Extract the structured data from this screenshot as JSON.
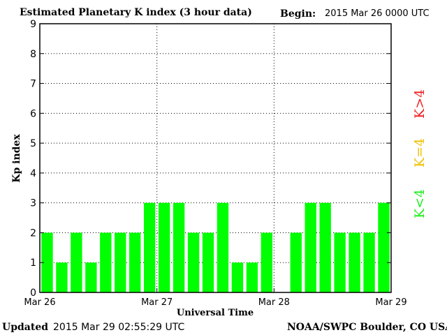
{
  "header": {
    "title": "Estimated Planetary K index (3 hour data)",
    "begin_label": "Begin:",
    "begin_value": "2015 Mar 26 0000 UTC"
  },
  "footer": {
    "updated_label": "Updated",
    "updated_value": "2015 Mar 29 02:55:29 UTC",
    "source": "NOAA/SWPC Boulder, CO USA"
  },
  "legend": {
    "items": [
      {
        "label": "K<4",
        "color": "#22ee22"
      },
      {
        "label": "K=4",
        "color": "#f0c000"
      },
      {
        "label": "K>4",
        "color": "#ee2222"
      }
    ]
  },
  "chart_data": {
    "type": "bar",
    "title": "Estimated Planetary K index (3 hour data)",
    "xlabel": "Universal Time",
    "ylabel": "Kp index",
    "ylim": [
      0,
      9
    ],
    "yticks": [
      0,
      1,
      2,
      3,
      4,
      5,
      6,
      7,
      8,
      9
    ],
    "xticks": [
      "Mar 26",
      "Mar 27",
      "Mar 28",
      "Mar 29"
    ],
    "grid": true,
    "bar_color": "#00ff00",
    "series": [
      {
        "values": [
          2,
          1,
          2,
          1,
          2,
          2,
          2,
          3,
          3,
          3,
          2,
          2,
          3,
          1,
          1,
          2,
          0,
          2,
          3,
          3,
          2,
          2,
          2,
          3
        ]
      }
    ]
  }
}
